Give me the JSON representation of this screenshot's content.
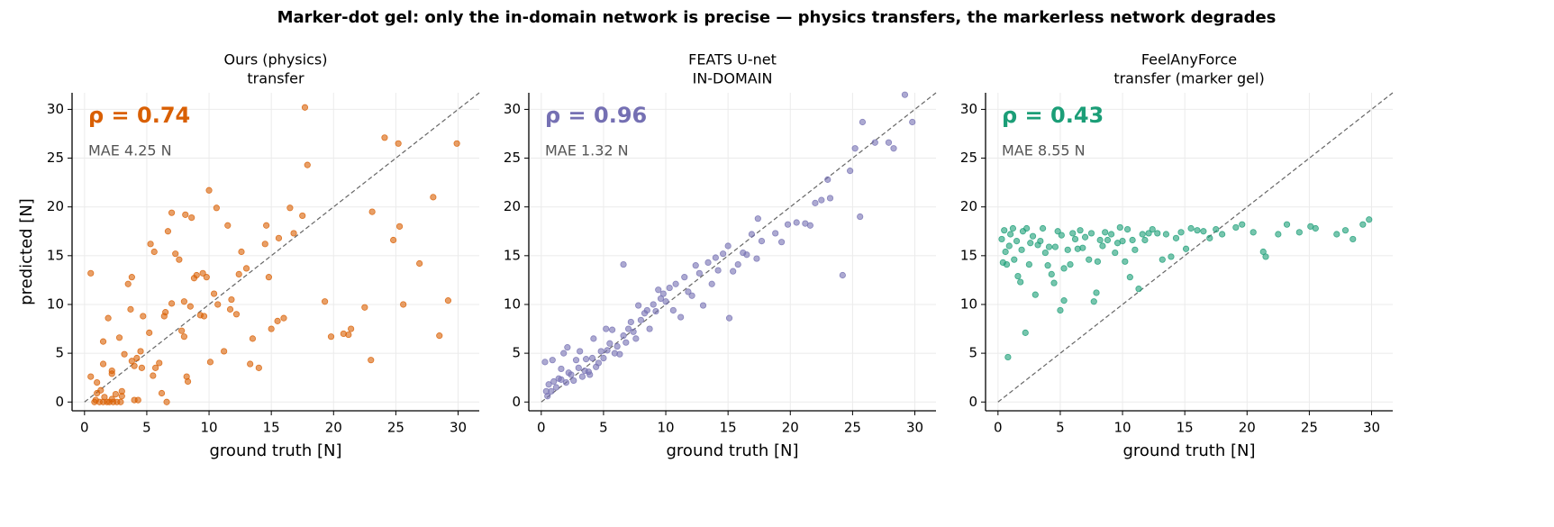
{
  "title": "Marker-dot gel: only the in-domain network is precise — physics transfers, the markerless network degrades",
  "chart_data": [
    {
      "type": "scatter",
      "title": "Ours (physics)",
      "subtitle": "transfer",
      "annotations": [
        "ρ = 0.74",
        "MAE 4.25 N"
      ],
      "xlabel": "ground truth [N]",
      "ylabel": "predicted [N]",
      "color": "#d95f02",
      "xlim": [
        -1,
        31.7
      ],
      "ylim": [
        -0.9,
        31.7
      ],
      "xticks": [
        0,
        5,
        10,
        15,
        20,
        25,
        30
      ],
      "yticks": [
        0,
        5,
        10,
        15,
        20,
        25,
        30
      ],
      "grid": true,
      "x": [
        0.5,
        0.5,
        0.8,
        1,
        1.2,
        1.5,
        1.8,
        2,
        2.3,
        2.6,
        2.9,
        1.0,
        1.3,
        1.6,
        2.2,
        2.5,
        3.0,
        0.9,
        1.5,
        1.9,
        1.5,
        2.2,
        2.2,
        2.8,
        3.2,
        3.0,
        3.7,
        3.5,
        3.8,
        3.8,
        4,
        4.2,
        4.5,
        4.6,
        4.7,
        4,
        4.3,
        5.2,
        5.3,
        5.6,
        5.5,
        5.7,
        6,
        6.2,
        6.4,
        6.5,
        6.6,
        6.7,
        7,
        7,
        7.3,
        7.6,
        7.8,
        8,
        8,
        8.1,
        8.2,
        8.3,
        8.5,
        8.6,
        8.8,
        9,
        9.3,
        9.5,
        9.6,
        9.8,
        10,
        10.1,
        10.4,
        10.6,
        10.7,
        11.2,
        11.5,
        11.7,
        11.8,
        12.2,
        12.4,
        12.6,
        13,
        13.3,
        13.5,
        14,
        14.5,
        14.6,
        14.8,
        15,
        15.5,
        15.6,
        16,
        16.5,
        16.8,
        17.5,
        17.7,
        17.9,
        19.3,
        19.8,
        20.8,
        21.2,
        21.4,
        22.5,
        23.1,
        23.0,
        24.1,
        24.8,
        25.2,
        25.3,
        25.6,
        26.9,
        28,
        28.5,
        29.2,
        29.9
      ],
      "values": [
        13.2,
        2.6,
        0,
        0.9,
        0,
        0,
        0,
        0,
        0,
        0,
        0,
        2.0,
        1.2,
        0.5,
        0.3,
        0.8,
        0.6,
        0.2,
        6.2,
        8.6,
        3.9,
        2.9,
        3.2,
        6.6,
        4.9,
        1.1,
        9.5,
        12.1,
        12.8,
        4.2,
        3.7,
        4.5,
        5.2,
        3.5,
        8.8,
        0.2,
        0.2,
        7.1,
        16.2,
        15.4,
        2.7,
        3.5,
        4,
        0.9,
        8.8,
        9.2,
        0,
        17.5,
        19.4,
        10.1,
        15.2,
        14.6,
        7.3,
        6.7,
        10.3,
        19.2,
        2.6,
        2.1,
        9.8,
        18.9,
        12.7,
        13,
        8.9,
        13.2,
        8.8,
        12.8,
        21.7,
        4.1,
        11.1,
        19.9,
        10,
        5.2,
        18.1,
        9.5,
        10.5,
        9,
        13.1,
        15.4,
        13.7,
        3.9,
        6.5,
        3.5,
        16.2,
        18.1,
        12.8,
        7.5,
        8.3,
        16.8,
        8.6,
        19.9,
        17.3,
        19.1,
        30.2,
        24.3,
        10.3,
        6.7,
        7,
        6.9,
        7.5,
        9.7,
        19.5,
        4.3,
        27.1,
        16.6,
        26.5,
        18,
        10,
        14.2,
        21,
        6.8,
        10.4,
        26.5
      ]
    },
    {
      "type": "scatter",
      "title": "FEATS U-net",
      "subtitle": "IN-DOMAIN",
      "annotations": [
        "ρ = 0.96",
        "MAE 1.32 N"
      ],
      "xlabel": "ground truth [N]",
      "color": "#7570b3",
      "xlim": [
        -1,
        31.7
      ],
      "ylim": [
        -0.9,
        31.7
      ],
      "xticks": [
        0,
        5,
        10,
        15,
        20,
        25,
        30
      ],
      "yticks": [
        0,
        5,
        10,
        15,
        20,
        25,
        30
      ],
      "grid": true,
      "x": [
        0.3,
        0.4,
        0.5,
        0.6,
        0.8,
        0.9,
        1,
        1.2,
        1.4,
        1.6,
        1.6,
        1.8,
        2,
        2.1,
        2.2,
        2.4,
        2.6,
        2.8,
        3,
        3.1,
        3.3,
        3.5,
        3.6,
        3.8,
        3.9,
        4.1,
        4.2,
        4.4,
        4.6,
        4.8,
        5,
        5.2,
        5.3,
        5.5,
        5.7,
        5.9,
        6.1,
        6.3,
        6.6,
        6.6,
        6.8,
        7,
        7.2,
        7.4,
        7.6,
        7.8,
        8,
        8.3,
        8.5,
        8.7,
        9,
        9.2,
        9.4,
        9.6,
        9.8,
        10,
        10.3,
        10.6,
        10.8,
        11.2,
        11.5,
        11.8,
        12.1,
        12.4,
        12.7,
        13,
        13.4,
        13.7,
        14,
        14.2,
        14.6,
        15,
        15.1,
        15.4,
        15.8,
        16.2,
        16.5,
        16.9,
        17.3,
        17.4,
        17.7,
        18.8,
        19.3,
        19.8,
        20.5,
        21.2,
        21.6,
        22,
        22.5,
        23,
        23.2,
        24.2,
        24.8,
        25.2,
        25.6,
        25.8,
        26.8,
        27.9,
        28.3,
        29.2,
        29.8
      ],
      "values": [
        4.1,
        1.1,
        0.6,
        1.8,
        1.1,
        4.3,
        2.1,
        1.5,
        2.4,
        2.3,
        3.4,
        5,
        2,
        5.6,
        3,
        2.8,
        2.2,
        4.3,
        3.5,
        5.2,
        2.6,
        3.2,
        4.4,
        3.1,
        2.8,
        4.5,
        6.5,
        3.6,
        4,
        5.2,
        4.5,
        7.5,
        5.3,
        6,
        7.4,
        5,
        5.7,
        4.9,
        14.1,
        6.8,
        6.1,
        7.5,
        8.2,
        7.2,
        6.5,
        9.9,
        8.4,
        9.1,
        9.4,
        7.5,
        10,
        9.3,
        11.5,
        10.6,
        11.1,
        10.3,
        11.7,
        9.4,
        12.1,
        8.7,
        12.8,
        11.3,
        10.9,
        14,
        13.2,
        9.9,
        14.3,
        12.1,
        14.8,
        13.5,
        15.2,
        16,
        8.6,
        13.4,
        14.1,
        15.3,
        15.1,
        17.2,
        14.7,
        18.8,
        16.5,
        17.3,
        16.4,
        18.2,
        18.4,
        18.3,
        18.1,
        20.4,
        20.7,
        22.8,
        20.9,
        13,
        23.7,
        26,
        19,
        28.7,
        26.6,
        26.6,
        26,
        31.5,
        28.7
      ]
    },
    {
      "type": "scatter",
      "title": "FeelAnyForce",
      "subtitle": "transfer (marker gel)",
      "annotations": [
        "ρ = 0.43",
        "MAE 8.55 N"
      ],
      "xlabel": "ground truth [N]",
      "color": "#1b9e77",
      "xlim": [
        -1,
        31.7
      ],
      "ylim": [
        -0.9,
        31.7
      ],
      "xticks": [
        0,
        5,
        10,
        15,
        20,
        25,
        30
      ],
      "yticks": [
        0,
        5,
        10,
        15,
        20,
        25,
        30
      ],
      "grid": true,
      "x": [
        0.3,
        0.4,
        0.5,
        0.6,
        0.7,
        0.8,
        0.9,
        1,
        1.2,
        1.3,
        1.5,
        1.6,
        1.8,
        1.9,
        2.0,
        2.2,
        2.3,
        2.5,
        2.6,
        2.8,
        3,
        3.2,
        3.4,
        3.6,
        3.8,
        4,
        4.1,
        4.3,
        4.5,
        4.6,
        4.8,
        5,
        5.1,
        5.3,
        5.3,
        5.6,
        5.8,
        6,
        6.2,
        6.4,
        6.6,
        6.8,
        7,
        7.3,
        7.5,
        7.7,
        7.9,
        8,
        8.2,
        8.4,
        8.6,
        8.8,
        9.1,
        9.4,
        9.6,
        9.8,
        10,
        10.2,
        10.4,
        10.6,
        10.8,
        11,
        11.3,
        11.6,
        11.8,
        12.1,
        12.4,
        12.8,
        13.2,
        13.5,
        13.9,
        14.3,
        14.7,
        15.1,
        15.5,
        16,
        16.5,
        17,
        17.5,
        18,
        19.1,
        19.6,
        20.5,
        21.3,
        21.5,
        22.5,
        23.2,
        24.2,
        25.1,
        25.5,
        27.2,
        27.9,
        28.5,
        29.3,
        29.8
      ],
      "values": [
        16.7,
        14.3,
        17.6,
        15.4,
        14.1,
        4.6,
        16,
        17.2,
        17.8,
        14.6,
        16.5,
        12.9,
        12.3,
        15.6,
        17.5,
        7.1,
        17.8,
        14.1,
        16.3,
        17,
        11,
        16.1,
        16.5,
        17.8,
        15.3,
        14,
        15.9,
        13.1,
        12.2,
        15.9,
        17.5,
        9.4,
        17.1,
        10.4,
        13.7,
        15.6,
        14.1,
        17.3,
        16.7,
        15.7,
        17.6,
        15.8,
        16.9,
        14.6,
        17.3,
        10.3,
        11.2,
        14.4,
        16.6,
        16,
        17.4,
        16.6,
        17.2,
        15.3,
        16.3,
        17.9,
        16.5,
        14.4,
        17.7,
        12.8,
        16.6,
        15.6,
        11.6,
        17.2,
        16.6,
        17.3,
        17.7,
        17.3,
        14.6,
        17.2,
        14.9,
        16.8,
        17.4,
        15.7,
        17.8,
        17.6,
        17.5,
        16.8,
        17.7,
        17.2,
        17.9,
        18.2,
        17.4,
        15.4,
        14.9,
        17.2,
        18.2,
        17.4,
        18,
        17.8,
        17.2,
        17.6,
        16.7,
        18.2,
        18.7
      ]
    }
  ]
}
